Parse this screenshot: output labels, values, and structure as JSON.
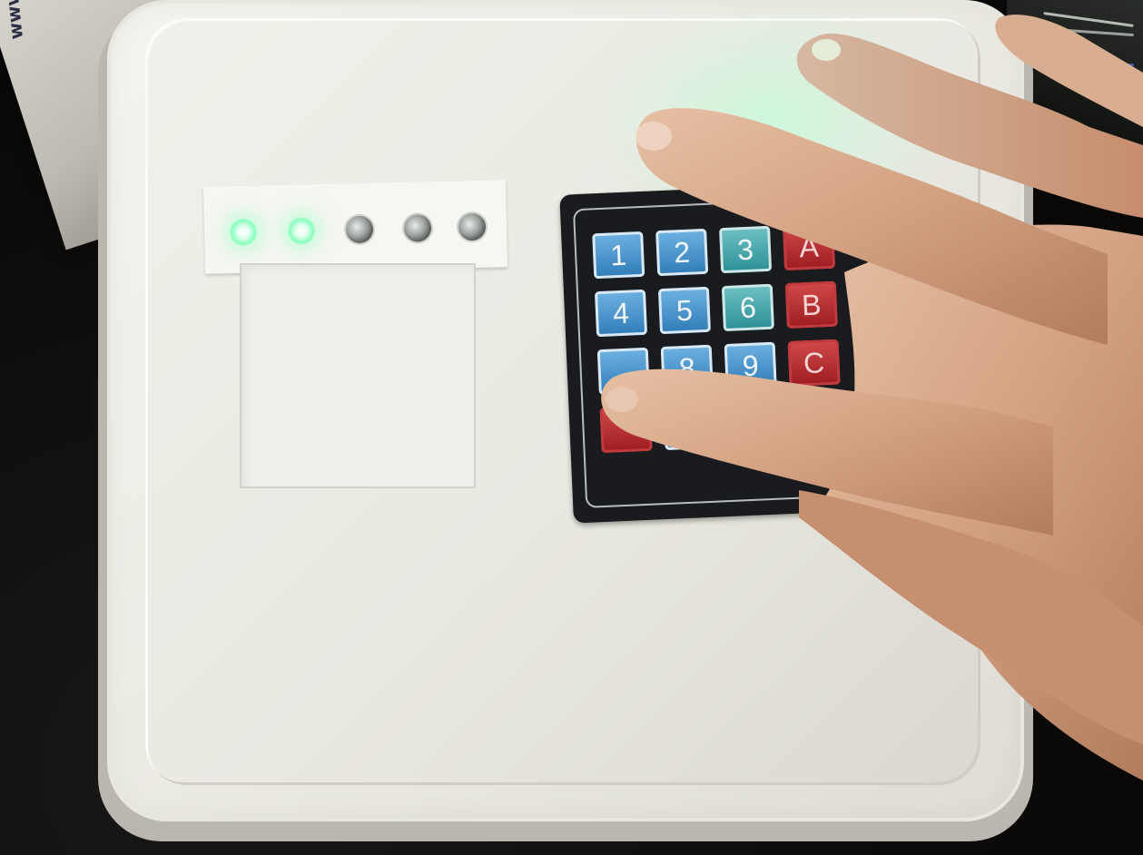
{
  "background": {
    "cardboard_text": "www.pjrc.com/help"
  },
  "led_strip": {
    "leds": [
      {
        "state": "on"
      },
      {
        "state": "on"
      },
      {
        "state": "off"
      },
      {
        "state": "off"
      },
      {
        "state": "off"
      }
    ]
  },
  "keypad": {
    "keys": [
      {
        "label": "1",
        "color": "blue"
      },
      {
        "label": "2",
        "color": "blue"
      },
      {
        "label": "3",
        "color": "teal"
      },
      {
        "label": "A",
        "color": "red"
      },
      {
        "label": "4",
        "color": "blue"
      },
      {
        "label": "5",
        "color": "blue"
      },
      {
        "label": "6",
        "color": "teal"
      },
      {
        "label": "B",
        "color": "red"
      },
      {
        "label": "",
        "color": "blue"
      },
      {
        "label": "8",
        "color": "blue"
      },
      {
        "label": "9",
        "color": "blue"
      },
      {
        "label": "C",
        "color": "red"
      },
      {
        "label": "",
        "color": "red"
      },
      {
        "label": "",
        "color": "blue"
      },
      {
        "label": "",
        "color": "blue"
      },
      {
        "label": "",
        "color": "red"
      }
    ]
  },
  "colors": {
    "led_glow": "#8dffbf",
    "key_blue": "#2f7bb7",
    "key_teal": "#2a8f95",
    "key_red": "#9d1b1f",
    "lid": "#ecebe4"
  }
}
